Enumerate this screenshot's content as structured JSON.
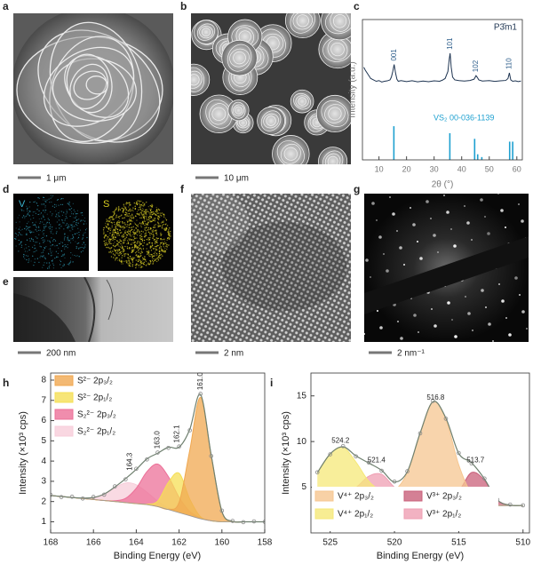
{
  "figure": {
    "panels": [
      {
        "letter": "a",
        "scale": "1 μm"
      },
      {
        "letter": "b",
        "scale": "10 μm"
      },
      {
        "letter": "c"
      },
      {
        "letter": "d",
        "maps": [
          "V",
          "S"
        ]
      },
      {
        "letter": "e",
        "scale": "200 nm"
      },
      {
        "letter": "f",
        "scale": "2 nm"
      },
      {
        "letter": "g",
        "scale": "2 nm⁻¹"
      },
      {
        "letter": "h"
      },
      {
        "letter": "i"
      }
    ]
  },
  "chart_data": [
    {
      "type": "line",
      "space_group": "P3̄m1",
      "xlabel": "2θ (°)",
      "ylabel": "Intensity (a.u.)",
      "xlim": [
        4,
        62
      ],
      "xticks": [
        10,
        20,
        30,
        40,
        50,
        60
      ],
      "ylim": [
        0,
        100
      ],
      "pattern": {
        "color": "#1f3552",
        "x": [
          4.5,
          5,
          6,
          7,
          8,
          9,
          10,
          11,
          12,
          13,
          14,
          14.5,
          15,
          15.5,
          16,
          16.5,
          17,
          18,
          20,
          22,
          24,
          26,
          28,
          30,
          32,
          33,
          34,
          35,
          35.5,
          35.8,
          36.2,
          36.7,
          37.5,
          39,
          41,
          43,
          44.5,
          45.2,
          45.6,
          46.2,
          47.5,
          50,
          52,
          54,
          56,
          56.8,
          57.3,
          57.8,
          58.5,
          59.5,
          60.5,
          61.5
        ],
        "values": [
          66,
          64,
          61,
          58,
          57,
          56,
          56.5,
          55.5,
          56,
          56.3,
          57,
          59,
          63,
          68,
          62,
          57.5,
          56,
          56.5,
          55.8,
          56.4,
          55.6,
          56.2,
          55.7,
          56.3,
          56,
          56.8,
          58,
          63,
          72,
          76,
          66,
          59,
          57,
          56.5,
          56.2,
          56.6,
          57.5,
          60,
          59,
          57,
          56.2,
          56.5,
          55.9,
          56.3,
          56.6,
          58,
          62,
          57,
          56,
          56.3,
          55.8,
          56.2
        ]
      },
      "peaks": [
        {
          "x": 15.5,
          "label": "001"
        },
        {
          "x": 35.8,
          "label": "101"
        },
        {
          "x": 45.2,
          "label": "102"
        },
        {
          "x": 57.3,
          "label": "110"
        }
      ],
      "reference": {
        "name": "VS₂ 00-036-1139",
        "color": "#1ea0d0",
        "x": [
          15.4,
          35.7,
          44.7,
          45.8,
          47.3,
          57.4,
          58.5
        ],
        "values": [
          24,
          19,
          15,
          4,
          2,
          13,
          13
        ]
      }
    },
    {
      "type": "area",
      "xlabel": "Binding Energy (eV)",
      "ylabel": "Intensity (×10³ cps)",
      "xlim": [
        168,
        158
      ],
      "xticks": [
        168,
        166,
        164,
        162,
        160,
        158
      ],
      "ylim": [
        0.45,
        8.35
      ],
      "yticks": [
        1,
        2,
        3,
        4,
        5,
        6,
        7,
        8
      ],
      "legend": "upper-left",
      "legend_columns": 1,
      "x": [
        168,
        167.5,
        167,
        166.5,
        166,
        165.5,
        165,
        164.5,
        164,
        163.5,
        163,
        162.5,
        162,
        161.5,
        161,
        160.5,
        160,
        159.5,
        159,
        158.5,
        158
      ],
      "baseline": [
        2.3,
        2.25,
        2.2,
        2.15,
        2.1,
        2.05,
        2.0,
        1.95,
        1.9,
        1.85,
        1.75,
        1.6,
        1.45,
        1.3,
        1.15,
        1.05,
        1.0,
        1.0,
        1.0,
        1.0,
        1.0
      ],
      "baseline_color": "#9a9a9a",
      "fit": [
        2.3,
        2.25,
        2.2,
        2.17,
        2.2,
        2.37,
        2.72,
        3.13,
        3.59,
        4.11,
        4.39,
        4.68,
        4.69,
        5.57,
        7.29,
        4.29,
        1.51,
        1.02,
        1.0,
        1.0,
        1.0
      ],
      "fit_color": "#6f806f",
      "points": [
        2.33,
        2.22,
        2.24,
        2.15,
        2.23,
        2.34,
        2.75,
        3.1,
        3.62,
        4.08,
        4.42,
        4.65,
        4.72,
        5.52,
        7.32,
        4.25,
        1.55,
        1.04,
        0.98,
        1.02,
        1.0
      ],
      "points_color": "#8a8a8a",
      "series": [
        {
          "name": "S²⁻ 2p₃/₂",
          "color": "#f0a850",
          "values": [
            2.3,
            2.25,
            2.2,
            2.15,
            2.1,
            2.05,
            2.0,
            1.95,
            1.9,
            1.85,
            1.75,
            1.62,
            1.96,
            4.54,
            7.15,
            4.29,
            1.51,
            1.02,
            1.0,
            1.0,
            1.0
          ]
        },
        {
          "name": "S²⁻ 2p₁/₂",
          "color": "#f5df55",
          "values": [
            2.3,
            2.25,
            2.2,
            2.15,
            2.1,
            2.05,
            2.0,
            1.95,
            1.9,
            1.87,
            2.02,
            2.95,
            3.4,
            2.12,
            1.25,
            1.05,
            1.0,
            1.0,
            1.0,
            1.0,
            1.0
          ]
        },
        {
          "name": "S₂²⁻ 2p₃/₂",
          "color": "#ec7098",
          "values": [
            2.3,
            2.25,
            2.2,
            2.15,
            2.1,
            2.05,
            2.04,
            2.16,
            2.66,
            3.48,
            3.85,
            3.23,
            2.21,
            1.51,
            1.19,
            1.05,
            1.0,
            1.0,
            1.0,
            1.0,
            1.0
          ]
        },
        {
          "name": "S₂²⁻ 2p₁/₂",
          "color": "#f7cdda",
          "values": [
            2.3,
            2.25,
            2.2,
            2.17,
            2.2,
            2.37,
            2.68,
            2.92,
            2.83,
            2.46,
            2.02,
            1.68,
            1.47,
            1.3,
            1.15,
            1.05,
            1.0,
            1.0,
            1.0,
            1.0,
            1.0
          ]
        }
      ],
      "annotations": [
        {
          "x": 161.0,
          "label": "161.0"
        },
        {
          "x": 162.1,
          "label": "162.1"
        },
        {
          "x": 163.0,
          "label": "163.0"
        },
        {
          "x": 164.3,
          "label": "164.3"
        }
      ]
    },
    {
      "type": "area",
      "xlabel": "Binding Energy (eV)",
      "ylabel": "Intensity (×10³ cps)",
      "xlim": [
        526.5,
        509.5
      ],
      "xticks": [
        525,
        520,
        515,
        510
      ],
      "ylim": [
        0,
        17.5
      ],
      "yticks": [
        5,
        10,
        15
      ],
      "legend": "lower-left",
      "legend_columns": 2,
      "x": [
        526,
        525,
        524,
        523,
        522,
        521,
        520,
        519,
        518,
        517,
        516,
        515,
        514,
        513,
        512,
        511,
        510
      ],
      "baseline": [
        4.4,
        4.4,
        4.4,
        4.3,
        4.2,
        4.2,
        4.1,
        4.0,
        3.9,
        3.7,
        3.5,
        3.3,
        3.2,
        3.1,
        3.0,
        3.0,
        3.0
      ],
      "baseline_color": "#9a9a9a",
      "fit": [
        6.59,
        8.65,
        9.43,
        8.43,
        7.65,
        6.85,
        5.58,
        6.71,
        10.95,
        14.37,
        12.57,
        8.71,
        7.67,
        5.91,
        3.61,
        3.04,
        3.0
      ],
      "fit_color": "#6f806f",
      "points": [
        6.63,
        8.6,
        9.5,
        8.38,
        7.7,
        6.8,
        5.62,
        6.75,
        10.9,
        14.45,
        12.5,
        8.75,
        7.6,
        5.95,
        3.65,
        3.1,
        3.02
      ],
      "points_color": "#8a8a8a",
      "series": [
        {
          "name": "V⁴⁺ 2p₃/₂",
          "color": "#f6c690",
          "values": [
            4.4,
            4.4,
            4.4,
            4.3,
            4.2,
            4.26,
            4.62,
            6.58,
            10.95,
            14.37,
            12.43,
            7.44,
            4.26,
            3.25,
            3.0,
            3.0,
            3.0
          ]
        },
        {
          "name": "V⁴⁺ 2p₁/₂",
          "color": "#f5e878",
          "values": [
            6.59,
            8.65,
            9.35,
            7.76,
            5.65,
            4.57,
            4.16,
            4.0,
            3.9,
            3.7,
            3.5,
            3.3,
            3.2,
            3.1,
            3.0,
            3.0,
            3.0
          ]
        },
        {
          "name": "V³⁺ 2p₃/₂",
          "color": "#c9607a",
          "values": [
            4.4,
            4.4,
            4.4,
            4.3,
            4.2,
            4.2,
            4.1,
            4.0,
            3.9,
            3.7,
            3.64,
            4.57,
            6.61,
            5.76,
            3.61,
            3.04,
            3.0
          ]
        },
        {
          "name": "V³⁺ 2p₁/₂",
          "color": "#ef9fb3",
          "values": [
            4.4,
            4.4,
            4.48,
            4.97,
            6.2,
            6.42,
            5.0,
            4.13,
            3.9,
            3.7,
            3.5,
            3.3,
            3.2,
            3.1,
            3.0,
            3.0,
            3.0
          ]
        }
      ],
      "annotations": [
        {
          "x": 524.2,
          "label": "524.2"
        },
        {
          "x": 521.4,
          "label": "521.4"
        },
        {
          "x": 516.8,
          "label": "516.8"
        },
        {
          "x": 513.7,
          "label": "513.7"
        }
      ]
    }
  ]
}
